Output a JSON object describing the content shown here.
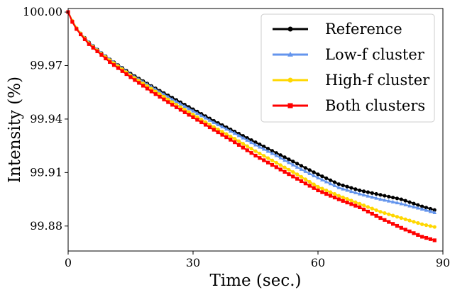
{
  "chart_data": {
    "type": "line",
    "xlabel": "Time (sec.)",
    "ylabel": "Intensity (%)",
    "xlim": [
      0,
      90
    ],
    "ylim": [
      99.866,
      100.002
    ],
    "xticks": [
      0,
      30,
      60,
      90
    ],
    "xtick_labels": [
      "0",
      "30",
      "60",
      "90"
    ],
    "yticks": [
      100.0,
      99.97,
      99.94,
      99.91,
      99.88
    ],
    "ytick_labels": [
      "100.00",
      "99.97",
      "99.94",
      "99.91",
      "99.88"
    ],
    "grid": false,
    "legend_position": "top-right",
    "series": [
      {
        "name": "Reference",
        "color": "#000000",
        "marker": "circle",
        "x": [
          0,
          1,
          2,
          3,
          5,
          8,
          10,
          15,
          20,
          25,
          30,
          35,
          40,
          45,
          50,
          55,
          60,
          65,
          70,
          75,
          80,
          85,
          88
        ],
        "y": [
          100.0,
          99.995,
          99.991,
          99.988,
          99.983,
          99.977,
          99.9735,
          99.9655,
          99.9585,
          99.952,
          99.9455,
          99.939,
          99.933,
          99.927,
          99.921,
          99.915,
          99.909,
          99.9035,
          99.9,
          99.8975,
          99.895,
          99.891,
          99.889
        ]
      },
      {
        "name": "Low-f cluster",
        "color": "#6495ed",
        "marker": "triangle",
        "x": [
          0,
          1,
          2,
          3,
          5,
          8,
          10,
          15,
          20,
          25,
          30,
          35,
          40,
          45,
          50,
          55,
          60,
          65,
          70,
          75,
          80,
          85,
          88
        ],
        "y": [
          100.0,
          99.995,
          99.991,
          99.988,
          99.983,
          99.977,
          99.9735,
          99.965,
          99.958,
          99.951,
          99.9445,
          99.938,
          99.932,
          99.9255,
          99.9195,
          99.913,
          99.907,
          99.9015,
          99.898,
          99.895,
          99.8925,
          99.8895,
          99.8875
        ]
      },
      {
        "name": "High-f cluster",
        "color": "#ffd700",
        "marker": "circle",
        "x": [
          0,
          1,
          2,
          3,
          5,
          8,
          10,
          15,
          20,
          25,
          30,
          35,
          40,
          45,
          50,
          55,
          60,
          65,
          70,
          75,
          80,
          85,
          88
        ],
        "y": [
          100.0,
          99.995,
          99.991,
          99.988,
          99.9825,
          99.9765,
          99.973,
          99.9645,
          99.957,
          99.9495,
          99.9425,
          99.9355,
          99.929,
          99.922,
          99.9155,
          99.909,
          99.902,
          99.897,
          99.8925,
          99.888,
          99.8845,
          99.881,
          99.8795
        ]
      },
      {
        "name": "Both clusters",
        "color": "#ff0000",
        "marker": "square",
        "x": [
          0,
          1,
          2,
          3,
          5,
          8,
          10,
          15,
          20,
          25,
          30,
          35,
          40,
          45,
          50,
          55,
          60,
          65,
          70,
          75,
          80,
          85,
          88
        ],
        "y": [
          100.0,
          99.9945,
          99.9905,
          99.9875,
          99.982,
          99.976,
          99.972,
          99.9635,
          99.9555,
          99.948,
          99.941,
          99.934,
          99.927,
          99.9195,
          99.913,
          99.9065,
          99.9,
          99.895,
          99.8905,
          99.8845,
          99.879,
          99.874,
          99.872
        ]
      }
    ]
  }
}
